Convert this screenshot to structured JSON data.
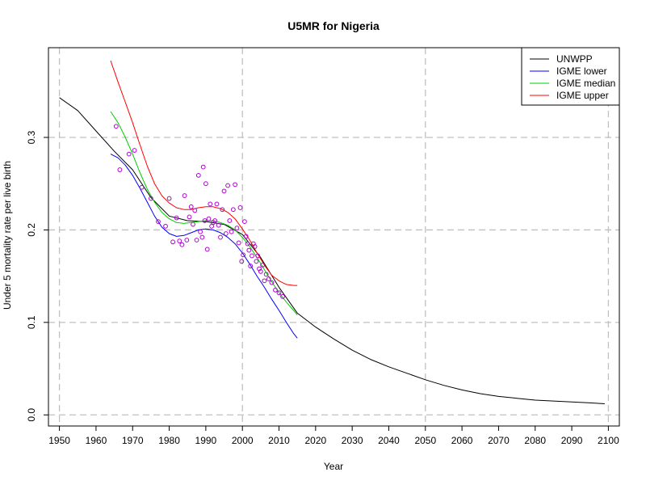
{
  "chart_data": {
    "type": "line",
    "title": "U5MR for Nigeria",
    "xlabel": "Year",
    "ylabel": "Under 5 mortality rate per live birth",
    "xlim": [
      1947,
      2103
    ],
    "ylim": [
      -0.012,
      0.397
    ],
    "xticks": [
      1950,
      1960,
      1970,
      1980,
      1990,
      2000,
      2010,
      2020,
      2030,
      2040,
      2050,
      2060,
      2070,
      2080,
      2090,
      2100
    ],
    "yticks": [
      0.0,
      0.1,
      0.2,
      0.3
    ],
    "ytick_labels": [
      "0.0",
      "0.1",
      "0.2",
      "0.3"
    ],
    "grid": true,
    "grid_x": [
      1950,
      2000,
      2050,
      2100
    ],
    "grid_y": [
      0.0,
      0.1,
      0.2,
      0.3
    ],
    "legend_position": "top-right",
    "series": [
      {
        "name": "UNWPP",
        "color": "#000000",
        "x": [
          1950,
          1955,
          1960,
          1965,
          1970,
          1975,
          1980,
          1985,
          1990,
          1995,
          2000,
          2005,
          2010,
          2015,
          2020,
          2025,
          2030,
          2035,
          2040,
          2045,
          2050,
          2055,
          2060,
          2065,
          2070,
          2075,
          2080,
          2085,
          2090,
          2095,
          2099
        ],
        "y": [
          0.343,
          0.329,
          0.307,
          0.285,
          0.265,
          0.235,
          0.215,
          0.21,
          0.209,
          0.206,
          0.195,
          0.17,
          0.138,
          0.11,
          0.095,
          0.082,
          0.07,
          0.06,
          0.052,
          0.045,
          0.038,
          0.032,
          0.027,
          0.023,
          0.02,
          0.018,
          0.016,
          0.015,
          0.014,
          0.013,
          0.012
        ]
      },
      {
        "name": "IGME lower",
        "color": "#0000ff",
        "x": [
          1964,
          1966,
          1968,
          1970,
          1972,
          1974,
          1976,
          1978,
          1980,
          1982,
          1984,
          1986,
          1988,
          1990,
          1992,
          1994,
          1996,
          1998,
          2000,
          2002,
          2004,
          2006,
          2008,
          2010,
          2012,
          2014,
          2015
        ],
        "y": [
          0.282,
          0.278,
          0.27,
          0.259,
          0.245,
          0.23,
          0.215,
          0.203,
          0.196,
          0.193,
          0.194,
          0.197,
          0.2,
          0.201,
          0.2,
          0.197,
          0.192,
          0.185,
          0.175,
          0.163,
          0.15,
          0.138,
          0.125,
          0.113,
          0.1,
          0.088,
          0.083
        ]
      },
      {
        "name": "IGME median",
        "color": "#00cc00",
        "x": [
          1964,
          1966,
          1968,
          1970,
          1972,
          1974,
          1976,
          1978,
          1980,
          1982,
          1984,
          1986,
          1988,
          1990,
          1992,
          1994,
          1996,
          1998,
          2000,
          2002,
          2004,
          2006,
          2008,
          2010,
          2012,
          2014,
          2015
        ],
        "y": [
          0.328,
          0.316,
          0.3,
          0.282,
          0.262,
          0.244,
          0.23,
          0.219,
          0.212,
          0.208,
          0.207,
          0.208,
          0.209,
          0.21,
          0.21,
          0.208,
          0.205,
          0.2,
          0.192,
          0.182,
          0.17,
          0.157,
          0.144,
          0.132,
          0.122,
          0.113,
          0.108
        ]
      },
      {
        "name": "IGME upper",
        "color": "#ff0000",
        "x": [
          1964,
          1966,
          1968,
          1970,
          1972,
          1974,
          1976,
          1978,
          1980,
          1982,
          1984,
          1986,
          1988,
          1990,
          1992,
          1994,
          1996,
          1998,
          2000,
          2002,
          2004,
          2006,
          2008,
          2010,
          2012,
          2014,
          2015
        ],
        "y": [
          0.383,
          0.36,
          0.338,
          0.316,
          0.292,
          0.269,
          0.25,
          0.237,
          0.229,
          0.224,
          0.222,
          0.222,
          0.224,
          0.225,
          0.225,
          0.223,
          0.219,
          0.212,
          0.201,
          0.189,
          0.175,
          0.162,
          0.151,
          0.145,
          0.141,
          0.14,
          0.14
        ]
      }
    ],
    "scatter": {
      "color": "#b000d0",
      "points": [
        [
          1965.5,
          0.312
        ],
        [
          1966.5,
          0.265
        ],
        [
          1969.0,
          0.282
        ],
        [
          1970.5,
          0.286
        ],
        [
          1972.5,
          0.246
        ],
        [
          1975.0,
          0.234
        ],
        [
          1977.0,
          0.209
        ],
        [
          1979.0,
          0.204
        ],
        [
          1980.0,
          0.234
        ],
        [
          1981.0,
          0.187
        ],
        [
          1982.0,
          0.213
        ],
        [
          1982.8,
          0.188
        ],
        [
          1983.5,
          0.184
        ],
        [
          1984.2,
          0.237
        ],
        [
          1984.8,
          0.189
        ],
        [
          1985.5,
          0.214
        ],
        [
          1986.0,
          0.225
        ],
        [
          1986.5,
          0.206
        ],
        [
          1987.0,
          0.221
        ],
        [
          1987.5,
          0.189
        ],
        [
          1988.0,
          0.259
        ],
        [
          1988.5,
          0.198
        ],
        [
          1989.0,
          0.192
        ],
        [
          1989.3,
          0.268
        ],
        [
          1989.7,
          0.21
        ],
        [
          1990.0,
          0.25
        ],
        [
          1990.4,
          0.179
        ],
        [
          1990.8,
          0.212
        ],
        [
          1991.2,
          0.228
        ],
        [
          1991.6,
          0.204
        ],
        [
          1992.0,
          0.208
        ],
        [
          1992.5,
          0.21
        ],
        [
          1993.0,
          0.228
        ],
        [
          1993.5,
          0.205
        ],
        [
          1994.0,
          0.192
        ],
        [
          1994.5,
          0.222
        ],
        [
          1995.0,
          0.242
        ],
        [
          1995.5,
          0.196
        ],
        [
          1996.0,
          0.248
        ],
        [
          1996.5,
          0.21
        ],
        [
          1997.0,
          0.198
        ],
        [
          1997.5,
          0.222
        ],
        [
          1998.0,
          0.249
        ],
        [
          1998.5,
          0.202
        ],
        [
          1999.0,
          0.186
        ],
        [
          1999.4,
          0.224
        ],
        [
          1999.8,
          0.166
        ],
        [
          2000.2,
          0.173
        ],
        [
          2000.6,
          0.209
        ],
        [
          2001.0,
          0.193
        ],
        [
          2001.4,
          0.185
        ],
        [
          2001.8,
          0.178
        ],
        [
          2002.2,
          0.161
        ],
        [
          2002.6,
          0.172
        ],
        [
          2003.0,
          0.185
        ],
        [
          2003.4,
          0.182
        ],
        [
          2003.8,
          0.166
        ],
        [
          2004.2,
          0.172
        ],
        [
          2004.6,
          0.158
        ],
        [
          2005.0,
          0.155
        ],
        [
          2005.5,
          0.162
        ],
        [
          2006.0,
          0.145
        ],
        [
          2006.5,
          0.152
        ],
        [
          2007.2,
          0.147
        ],
        [
          2008.0,
          0.143
        ],
        [
          2009.0,
          0.135
        ],
        [
          2010.0,
          0.132
        ],
        [
          2011.0,
          0.128
        ]
      ]
    }
  }
}
